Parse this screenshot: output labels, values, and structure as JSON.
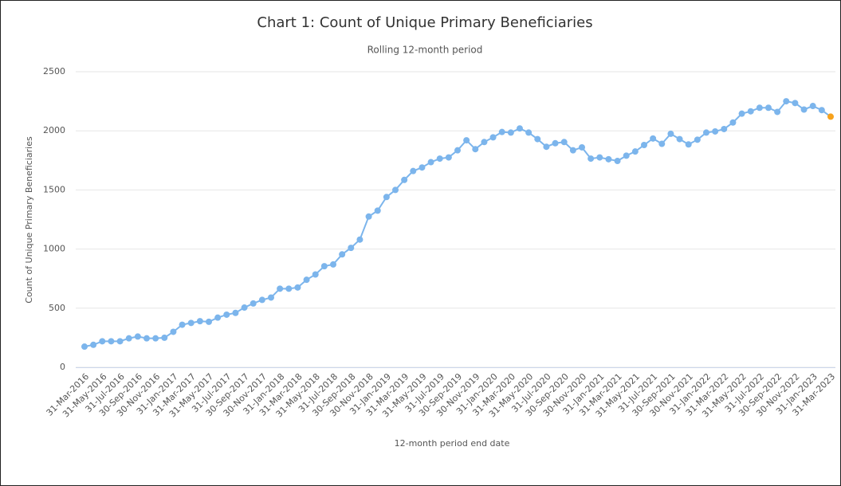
{
  "chart_data": {
    "type": "line",
    "title": "Chart 1: Count of Unique Primary Beneficiaries",
    "subtitle": "Rolling 12-month period",
    "x_label": "12-month period end date",
    "y_label": "Count of Unique Primary Beneficiaries",
    "categories": [
      "31-Mar-2016",
      null,
      "31-May-2016",
      null,
      "31-Jul-2016",
      null,
      "30-Sep-2016",
      null,
      "30-Nov-2016",
      null,
      "31-Jan-2017",
      null,
      "31-Mar-2017",
      null,
      "31-May-2017",
      null,
      "31-Jul-2017",
      null,
      "30-Sep-2017",
      null,
      "30-Nov-2017",
      null,
      "31-Jan-2018",
      null,
      "31-Mar-2018",
      null,
      "31-May-2018",
      null,
      "31-Jul-2018",
      null,
      "30-Sep-2018",
      null,
      "30-Nov-2018",
      null,
      "31-Jan-2019",
      null,
      "31-Mar-2019",
      null,
      "31-May-2019",
      null,
      "31-Jul-2019",
      null,
      "30-Sep-2019",
      null,
      "30-Nov-2019",
      null,
      "31-Jan-2020",
      null,
      "31-Mar-2020",
      null,
      "31-May-2020",
      null,
      "31-Jul-2020",
      null,
      "30-Sep-2020",
      null,
      "30-Nov-2020",
      null,
      "31-Jan-2021",
      null,
      "31-Mar-2021",
      null,
      "31-May-2021",
      null,
      "31-Jul-2021",
      null,
      "30-Sep-2021",
      null,
      "30-Nov-2021",
      null,
      "31-Jan-2022",
      null,
      "31-Mar-2022",
      null,
      "31-May-2022",
      null,
      "31-Jul-2022",
      null,
      "30-Sep-2022",
      null,
      "30-Nov-2022",
      null,
      "31-Jan-2023",
      null,
      "31-Mar-2023"
    ],
    "series": [
      {
        "name": "Count of Unique Primary Beneficiaries",
        "color": "#7cb5ec",
        "highlight_color": "#f7a21c",
        "values": [
          175,
          190,
          220,
          220,
          220,
          245,
          260,
          245,
          245,
          250,
          300,
          360,
          375,
          390,
          385,
          420,
          445,
          460,
          505,
          540,
          570,
          590,
          665,
          665,
          675,
          740,
          785,
          855,
          870,
          955,
          1010,
          1080,
          1275,
          1325,
          1440,
          1500,
          1585,
          1660,
          1690,
          1735,
          1765,
          1775,
          1835,
          1920,
          1845,
          1905,
          1945,
          1990,
          1985,
          2020,
          1985,
          1930,
          1865,
          1895,
          1905,
          1835,
          1860,
          1765,
          1775,
          1760,
          1745,
          1790,
          1825,
          1880,
          1935,
          1890,
          1975,
          1930,
          1885,
          1925,
          1985,
          1995,
          2015,
          2070,
          2145,
          2165,
          2195,
          2195,
          2160,
          2250,
          2235,
          2180,
          2210,
          2175,
          2120
        ]
      }
    ],
    "ylim": [
      0,
      2500
    ],
    "yticks": [
      0,
      500,
      1000,
      1500,
      2000,
      2500
    ],
    "grid": true
  }
}
